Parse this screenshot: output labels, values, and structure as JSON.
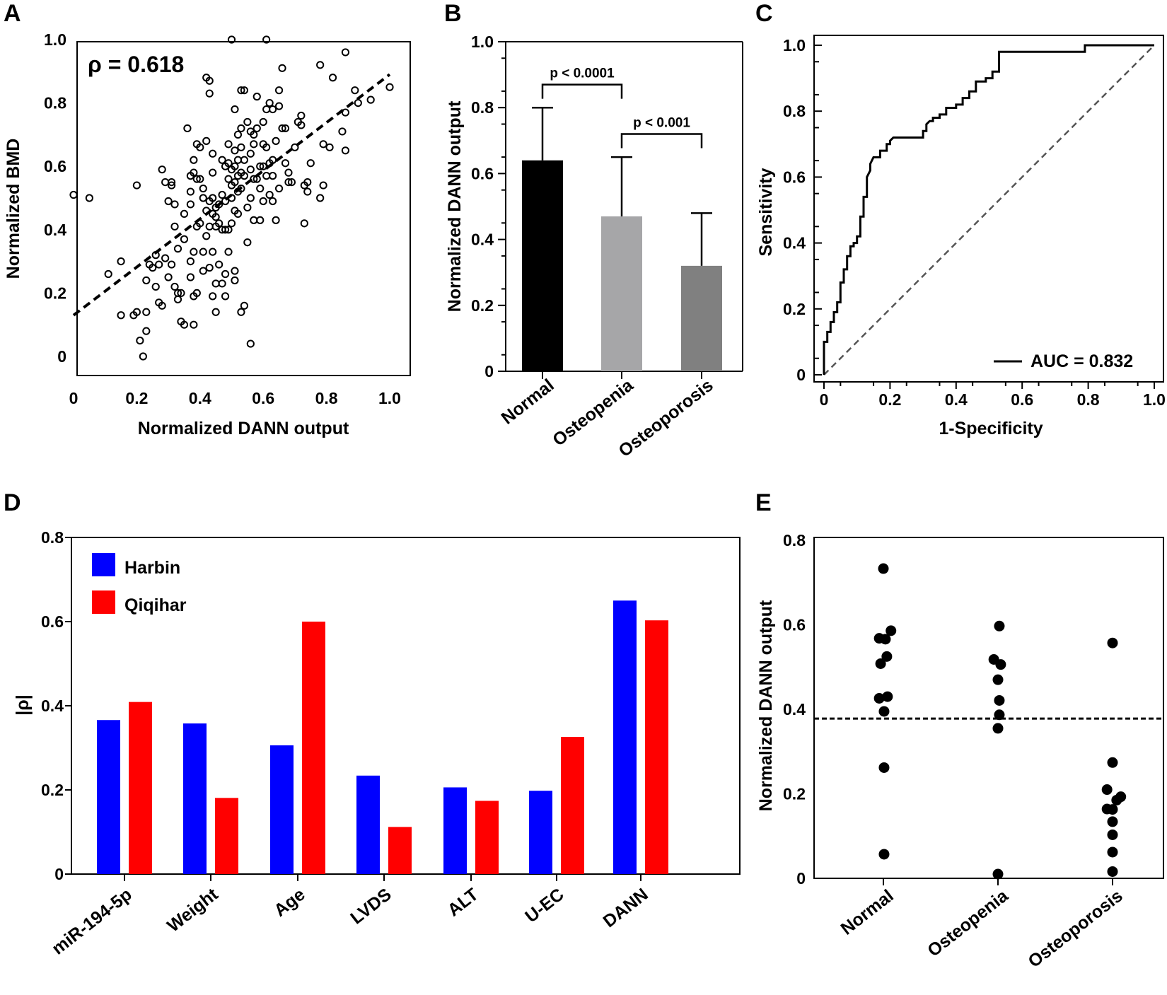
{
  "chart_data": [
    {
      "panel": "A",
      "type": "scatter",
      "xlabel": "Normalized DANN output",
      "ylabel": "Normalized BMD",
      "xlim": [
        0,
        1.0
      ],
      "ylim": [
        0,
        1.0
      ],
      "xticks": [
        "0",
        "0.2",
        "0.4",
        "0.6",
        "0.8",
        "1.0"
      ],
      "yticks": [
        "0",
        "0.2",
        "0.4",
        "0.6",
        "0.8",
        "1.0"
      ],
      "annotation": "ρ = 0.618",
      "fit_line": {
        "x": [
          0,
          1.0
        ],
        "y": [
          0.13,
          0.89
        ],
        "style": "dashed"
      },
      "points": [
        [
          0.0,
          0.51
        ],
        [
          0.05,
          0.5
        ],
        [
          0.11,
          0.26
        ],
        [
          0.15,
          0.3
        ],
        [
          0.15,
          0.13
        ],
        [
          0.19,
          0.13
        ],
        [
          0.2,
          0.14
        ],
        [
          0.2,
          0.54
        ],
        [
          0.21,
          0.05
        ],
        [
          0.22,
          0.0
        ],
        [
          0.23,
          0.08
        ],
        [
          0.23,
          0.14
        ],
        [
          0.23,
          0.24
        ],
        [
          0.24,
          0.29
        ],
        [
          0.25,
          0.28
        ],
        [
          0.26,
          0.22
        ],
        [
          0.26,
          0.32
        ],
        [
          0.27,
          0.17
        ],
        [
          0.27,
          0.29
        ],
        [
          0.28,
          0.16
        ],
        [
          0.28,
          0.59
        ],
        [
          0.29,
          0.31
        ],
        [
          0.29,
          0.55
        ],
        [
          0.3,
          0.25
        ],
        [
          0.3,
          0.49
        ],
        [
          0.31,
          0.55
        ],
        [
          0.31,
          0.54
        ],
        [
          0.31,
          0.29
        ],
        [
          0.32,
          0.22
        ],
        [
          0.32,
          0.48
        ],
        [
          0.32,
          0.41
        ],
        [
          0.33,
          0.2
        ],
        [
          0.33,
          0.18
        ],
        [
          0.33,
          0.34
        ],
        [
          0.34,
          0.11
        ],
        [
          0.34,
          0.2
        ],
        [
          0.35,
          0.1
        ],
        [
          0.35,
          0.37
        ],
        [
          0.35,
          0.45
        ],
        [
          0.36,
          0.72
        ],
        [
          0.37,
          0.57
        ],
        [
          0.37,
          0.52
        ],
        [
          0.37,
          0.48
        ],
        [
          0.37,
          0.3
        ],
        [
          0.37,
          0.25
        ],
        [
          0.38,
          0.19
        ],
        [
          0.38,
          0.33
        ],
        [
          0.38,
          0.1
        ],
        [
          0.38,
          0.58
        ],
        [
          0.38,
          0.62
        ],
        [
          0.39,
          0.67
        ],
        [
          0.39,
          0.56
        ],
        [
          0.39,
          0.41
        ],
        [
          0.39,
          0.2
        ],
        [
          0.4,
          0.56
        ],
        [
          0.4,
          0.42
        ],
        [
          0.4,
          0.66
        ],
        [
          0.41,
          0.53
        ],
        [
          0.41,
          0.5
        ],
        [
          0.41,
          0.33
        ],
        [
          0.41,
          0.27
        ],
        [
          0.42,
          0.88
        ],
        [
          0.42,
          0.68
        ],
        [
          0.42,
          0.46
        ],
        [
          0.42,
          0.38
        ],
        [
          0.43,
          0.87
        ],
        [
          0.43,
          0.49
        ],
        [
          0.43,
          0.41
        ],
        [
          0.43,
          0.28
        ],
        [
          0.43,
          0.83
        ],
        [
          0.44,
          0.64
        ],
        [
          0.44,
          0.58
        ],
        [
          0.44,
          0.5
        ],
        [
          0.44,
          0.45
        ],
        [
          0.44,
          0.33
        ],
        [
          0.44,
          0.19
        ],
        [
          0.45,
          0.47
        ],
        [
          0.45,
          0.44
        ],
        [
          0.45,
          0.41
        ],
        [
          0.45,
          0.23
        ],
        [
          0.45,
          0.14
        ],
        [
          0.46,
          0.48
        ],
        [
          0.46,
          0.42
        ],
        [
          0.46,
          0.29
        ],
        [
          0.47,
          0.62
        ],
        [
          0.47,
          0.51
        ],
        [
          0.47,
          0.4
        ],
        [
          0.47,
          0.23
        ],
        [
          0.48,
          0.6
        ],
        [
          0.48,
          0.49
        ],
        [
          0.48,
          0.4
        ],
        [
          0.48,
          0.26
        ],
        [
          0.48,
          0.19
        ],
        [
          0.49,
          0.67
        ],
        [
          0.49,
          0.61
        ],
        [
          0.49,
          0.56
        ],
        [
          0.49,
          0.33
        ],
        [
          0.49,
          0.4
        ],
        [
          0.5,
          1.0
        ],
        [
          0.5,
          0.59
        ],
        [
          0.5,
          0.54
        ],
        [
          0.5,
          0.5
        ],
        [
          0.5,
          0.42
        ],
        [
          0.51,
          0.78
        ],
        [
          0.51,
          0.65
        ],
        [
          0.51,
          0.6
        ],
        [
          0.51,
          0.55
        ],
        [
          0.51,
          0.46
        ],
        [
          0.51,
          0.24
        ],
        [
          0.51,
          0.27
        ],
        [
          0.52,
          0.7
        ],
        [
          0.52,
          0.62
        ],
        [
          0.52,
          0.57
        ],
        [
          0.52,
          0.52
        ],
        [
          0.52,
          0.45
        ],
        [
          0.53,
          0.84
        ],
        [
          0.53,
          0.72
        ],
        [
          0.53,
          0.66
        ],
        [
          0.53,
          0.58
        ],
        [
          0.53,
          0.53
        ],
        [
          0.53,
          0.14
        ],
        [
          0.54,
          0.84
        ],
        [
          0.54,
          0.62
        ],
        [
          0.54,
          0.57
        ],
        [
          0.54,
          0.16
        ],
        [
          0.55,
          0.74
        ],
        [
          0.55,
          0.47
        ],
        [
          0.55,
          0.36
        ],
        [
          0.56,
          0.71
        ],
        [
          0.56,
          0.64
        ],
        [
          0.56,
          0.59
        ],
        [
          0.56,
          0.5
        ],
        [
          0.56,
          0.04
        ],
        [
          0.57,
          0.7
        ],
        [
          0.57,
          0.67
        ],
        [
          0.57,
          0.56
        ],
        [
          0.57,
          0.43
        ],
        [
          0.58,
          0.72
        ],
        [
          0.58,
          0.82
        ],
        [
          0.58,
          0.56
        ],
        [
          0.59,
          0.6
        ],
        [
          0.59,
          0.53
        ],
        [
          0.59,
          0.43
        ],
        [
          0.6,
          0.74
        ],
        [
          0.6,
          0.67
        ],
        [
          0.6,
          0.6
        ],
        [
          0.6,
          0.49
        ],
        [
          0.61,
          1.0
        ],
        [
          0.61,
          0.78
        ],
        [
          0.61,
          0.66
        ],
        [
          0.61,
          0.57
        ],
        [
          0.62,
          0.8
        ],
        [
          0.62,
          0.61
        ],
        [
          0.62,
          0.51
        ],
        [
          0.63,
          0.78
        ],
        [
          0.63,
          0.62
        ],
        [
          0.63,
          0.57
        ],
        [
          0.63,
          0.49
        ],
        [
          0.64,
          0.68
        ],
        [
          0.64,
          0.43
        ],
        [
          0.65,
          0.79
        ],
        [
          0.65,
          0.84
        ],
        [
          0.65,
          0.53
        ],
        [
          0.66,
          0.91
        ],
        [
          0.66,
          0.72
        ],
        [
          0.67,
          0.72
        ],
        [
          0.67,
          0.61
        ],
        [
          0.68,
          0.58
        ],
        [
          0.68,
          0.55
        ],
        [
          0.69,
          0.55
        ],
        [
          0.7,
          0.66
        ],
        [
          0.71,
          0.74
        ],
        [
          0.72,
          0.73
        ],
        [
          0.72,
          0.76
        ],
        [
          0.73,
          0.54
        ],
        [
          0.73,
          0.42
        ],
        [
          0.74,
          0.55
        ],
        [
          0.74,
          0.52
        ],
        [
          0.75,
          0.61
        ],
        [
          0.78,
          0.92
        ],
        [
          0.78,
          0.5
        ],
        [
          0.79,
          0.54
        ],
        [
          0.79,
          0.67
        ],
        [
          0.81,
          0.66
        ],
        [
          0.82,
          0.88
        ],
        [
          0.85,
          0.71
        ],
        [
          0.86,
          0.65
        ],
        [
          0.86,
          0.77
        ],
        [
          0.86,
          0.96
        ],
        [
          0.89,
          0.84
        ],
        [
          0.9,
          0.8
        ],
        [
          0.94,
          0.81
        ],
        [
          1.0,
          0.85
        ]
      ]
    },
    {
      "panel": "B",
      "type": "bar",
      "ylabel": "Normalized DANN output",
      "ylim": [
        0,
        1.0
      ],
      "yticks": [
        "0",
        "0.2",
        "0.4",
        "0.6",
        "0.8",
        "1.0"
      ],
      "categories": [
        "Normal",
        "Osteopenia",
        "Osteoporosis"
      ],
      "values": [
        0.64,
        0.47,
        0.32
      ],
      "error_upper": [
        0.8,
        0.65,
        0.48
      ],
      "colors": [
        "#000000",
        "#a6a6a8",
        "#808080"
      ],
      "brackets": [
        {
          "from": 0,
          "to": 1,
          "y": 0.87,
          "label": "p < 0.0001"
        },
        {
          "from": 1,
          "to": 2,
          "y": 0.72,
          "label": "p < 0.001"
        }
      ]
    },
    {
      "panel": "C",
      "type": "line",
      "xlabel": "1-Specificity",
      "ylabel": "Sensitivity",
      "xlim": [
        0,
        1.0
      ],
      "ylim": [
        0,
        1.0
      ],
      "xticks": [
        "0",
        "0.2",
        "0.4",
        "0.6",
        "0.8",
        "1.0"
      ],
      "yticks": [
        "0",
        "0.2",
        "0.4",
        "0.6",
        "0.8",
        "1.0"
      ],
      "legend": "AUC = 0.832",
      "roc": [
        [
          0,
          0
        ],
        [
          0,
          0.1
        ],
        [
          0.01,
          0.1
        ],
        [
          0.01,
          0.13
        ],
        [
          0.02,
          0.13
        ],
        [
          0.02,
          0.16
        ],
        [
          0.03,
          0.16
        ],
        [
          0.03,
          0.19
        ],
        [
          0.04,
          0.19
        ],
        [
          0.04,
          0.22
        ],
        [
          0.05,
          0.22
        ],
        [
          0.05,
          0.26
        ],
        [
          0.05,
          0.28
        ],
        [
          0.06,
          0.28
        ],
        [
          0.06,
          0.32
        ],
        [
          0.07,
          0.32
        ],
        [
          0.07,
          0.36
        ],
        [
          0.08,
          0.36
        ],
        [
          0.08,
          0.39
        ],
        [
          0.09,
          0.39
        ],
        [
          0.09,
          0.4
        ],
        [
          0.1,
          0.4
        ],
        [
          0.1,
          0.42
        ],
        [
          0.11,
          0.42
        ],
        [
          0.11,
          0.48
        ],
        [
          0.12,
          0.48
        ],
        [
          0.12,
          0.54
        ],
        [
          0.13,
          0.54
        ],
        [
          0.13,
          0.6
        ],
        [
          0.14,
          0.62
        ],
        [
          0.14,
          0.64
        ],
        [
          0.15,
          0.66
        ],
        [
          0.17,
          0.66
        ],
        [
          0.17,
          0.68
        ],
        [
          0.19,
          0.68
        ],
        [
          0.19,
          0.7
        ],
        [
          0.2,
          0.7
        ],
        [
          0.2,
          0.71
        ],
        [
          0.21,
          0.72
        ],
        [
          0.3,
          0.72
        ],
        [
          0.3,
          0.74
        ],
        [
          0.31,
          0.74
        ],
        [
          0.31,
          0.76
        ],
        [
          0.32,
          0.77
        ],
        [
          0.33,
          0.77
        ],
        [
          0.33,
          0.78
        ],
        [
          0.35,
          0.78
        ],
        [
          0.35,
          0.79
        ],
        [
          0.37,
          0.79
        ],
        [
          0.37,
          0.81
        ],
        [
          0.4,
          0.81
        ],
        [
          0.4,
          0.82
        ],
        [
          0.42,
          0.82
        ],
        [
          0.42,
          0.84
        ],
        [
          0.44,
          0.84
        ],
        [
          0.44,
          0.86
        ],
        [
          0.46,
          0.86
        ],
        [
          0.46,
          0.89
        ],
        [
          0.49,
          0.89
        ],
        [
          0.49,
          0.9
        ],
        [
          0.51,
          0.9
        ],
        [
          0.51,
          0.92
        ],
        [
          0.53,
          0.92
        ],
        [
          0.53,
          0.98
        ],
        [
          0.79,
          0.98
        ],
        [
          0.79,
          1.0
        ],
        [
          1.0,
          1.0
        ]
      ],
      "reference_line": {
        "x": [
          0,
          1.0
        ],
        "y": [
          0,
          1.0
        ],
        "style": "dashed"
      }
    },
    {
      "panel": "D",
      "type": "bar",
      "ylabel": "|ρ|",
      "ylim": [
        0,
        0.8
      ],
      "yticks": [
        "0",
        "0.2",
        "0.4",
        "0.6",
        "0.8"
      ],
      "categories": [
        "miR-194-5p",
        "Weight",
        "Age",
        "LVDS",
        "ALT",
        "U-EC",
        "DANN"
      ],
      "series": [
        {
          "name": "Harbin",
          "color": "#0000ff",
          "values": [
            0.366,
            0.358,
            0.306,
            0.234,
            0.206,
            0.198,
            0.65
          ]
        },
        {
          "name": "Qiqihar",
          "color": "#ff0000",
          "values": [
            0.409,
            0.181,
            0.6,
            0.112,
            0.174,
            0.326,
            0.603
          ]
        }
      ]
    },
    {
      "panel": "E",
      "type": "scatter",
      "ylabel": "Normalized DANN output",
      "ylim": [
        0,
        0.8
      ],
      "yticks": [
        "0",
        "0.2",
        "0.4",
        "0.6",
        "0.8"
      ],
      "categories": [
        "Normal",
        "Osteopenia",
        "Osteoporosis"
      ],
      "threshold": 0.378,
      "groups": [
        {
          "name": "Normal",
          "points": [
            [
              0,
              0.733
            ],
            [
              -0.06,
              0.568
            ],
            [
              0.03,
              0.566
            ],
            [
              0.11,
              0.586
            ],
            [
              -0.04,
              0.508
            ],
            [
              0.05,
              0.525
            ],
            [
              -0.06,
              0.426
            ],
            [
              0.06,
              0.43
            ],
            [
              0.01,
              0.395
            ],
            [
              0.01,
              0.262
            ],
            [
              0.01,
              0.057
            ]
          ]
        },
        {
          "name": "Osteopenia",
          "points": [
            [
              0.02,
              0.597
            ],
            [
              -0.06,
              0.518
            ],
            [
              0.04,
              0.506
            ],
            [
              0.0,
              0.47
            ],
            [
              0.02,
              0.421
            ],
            [
              0.02,
              0.387
            ],
            [
              0.0,
              0.355
            ],
            [
              0.0,
              0.01
            ]
          ]
        },
        {
          "name": "Osteoporosis",
          "points": [
            [
              0.0,
              0.557
            ],
            [
              0.0,
              0.274
            ],
            [
              -0.08,
              0.21
            ],
            [
              0.06,
              0.185
            ],
            [
              0.12,
              0.193
            ],
            [
              -0.08,
              0.164
            ],
            [
              0.0,
              0.163
            ],
            [
              0.0,
              0.134
            ],
            [
              0.0,
              0.103
            ],
            [
              0.0,
              0.062
            ],
            [
              0.0,
              0.016
            ]
          ]
        }
      ]
    }
  ]
}
